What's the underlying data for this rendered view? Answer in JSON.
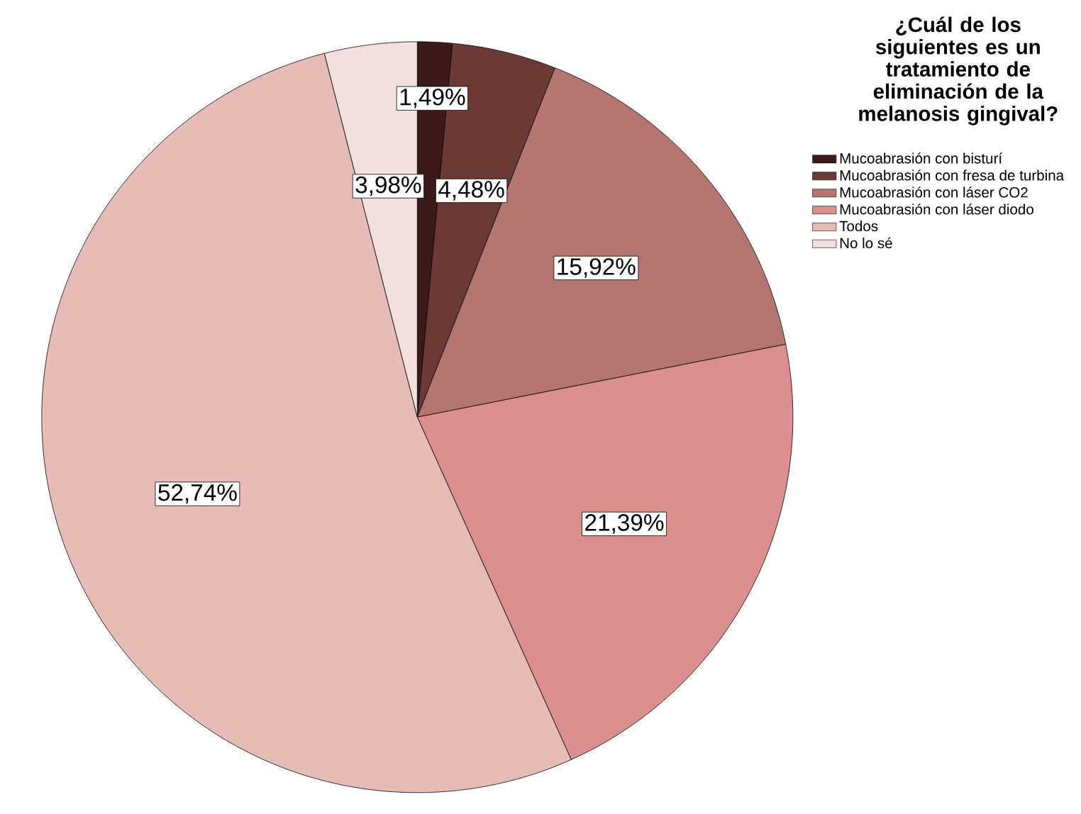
{
  "chart_data": {
    "type": "pie",
    "legend_title": "¿Cuál de los siguientes es un tratamiento de eliminación de la melanosis gingival?",
    "categories": [
      "Mucoabrasión con bisturí",
      "Mucoabrasión con fresa de turbina",
      "Mucoabrasión con láser CO2",
      "Mucoabrasión con láser diodo",
      "Todos",
      "No lo sé"
    ],
    "values": [
      1.49,
      4.48,
      15.92,
      21.39,
      52.74,
      3.98
    ],
    "value_labels": [
      "1,49%",
      "4,48%",
      "15,92%",
      "21,39%",
      "52,74%",
      "3,98%"
    ],
    "colors": [
      "#3d1a1a",
      "#6b3a36",
      "#b57570",
      "#db8f8f",
      "#e8bcb6",
      "#f2e0de"
    ],
    "legend": "top right"
  }
}
